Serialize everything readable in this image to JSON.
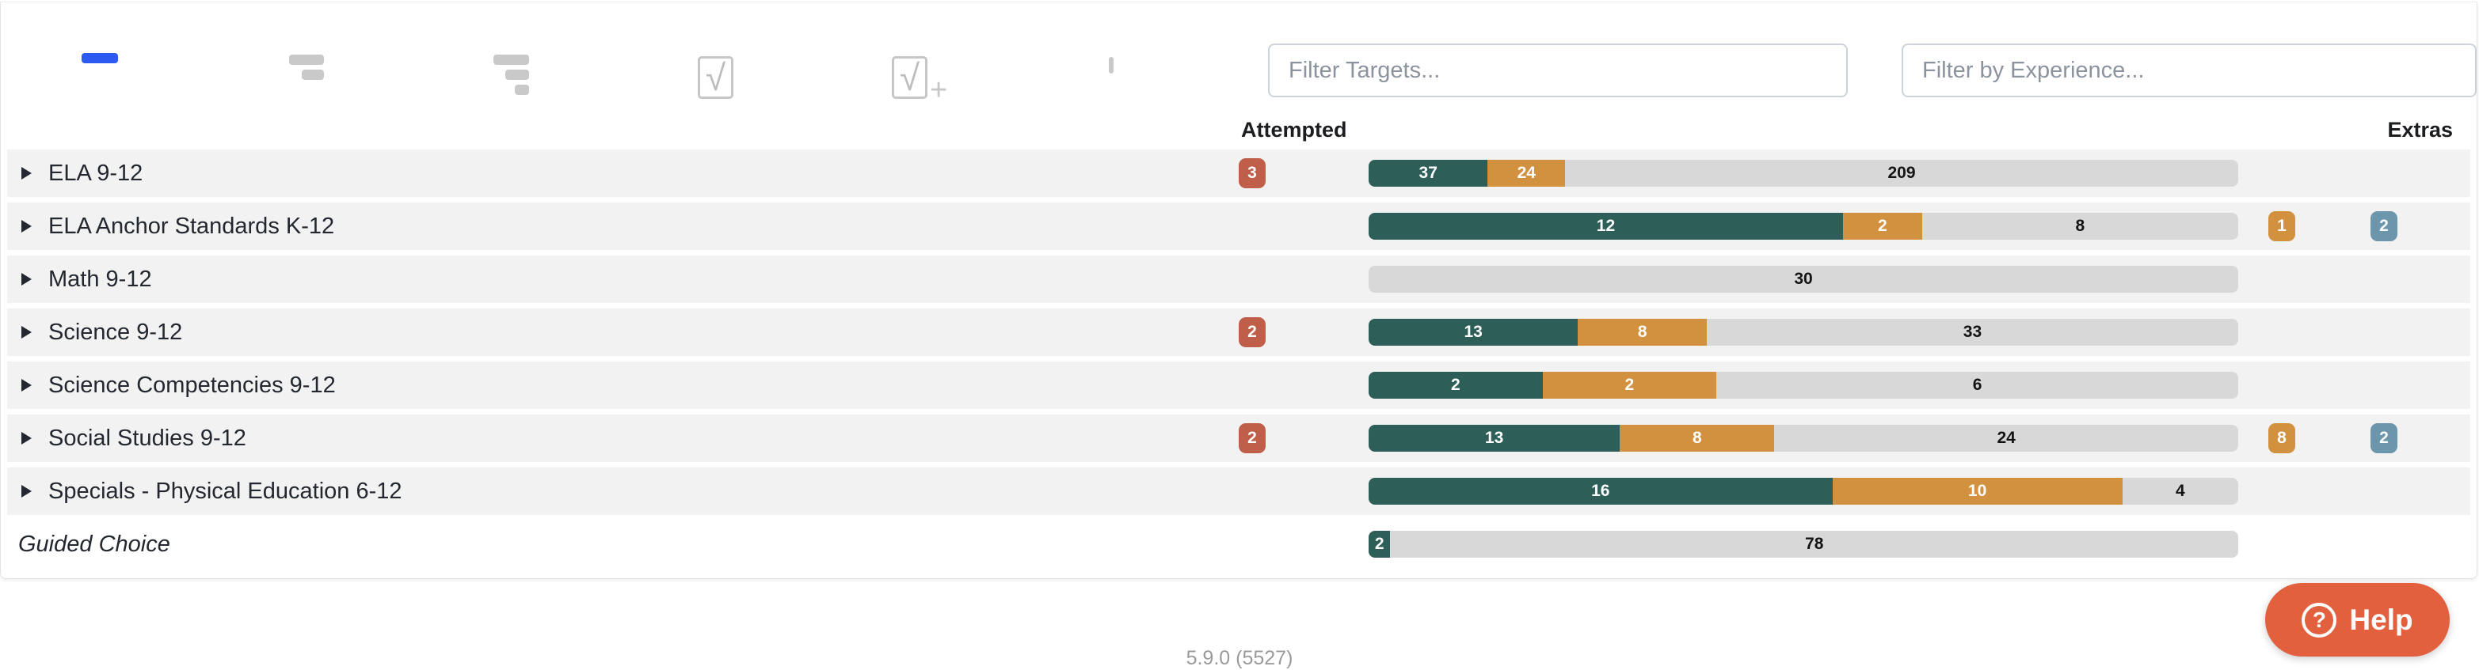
{
  "toolbar": {
    "view_buttons": [
      {
        "icon": "level-1-bar-icon",
        "active": true
      },
      {
        "icon": "level-2-bars-icon",
        "active": false
      },
      {
        "icon": "level-3-bars-icon",
        "active": false
      },
      {
        "icon": "scored-card-icon",
        "active": false
      },
      {
        "icon": "scored-card-plus-icon",
        "active": false
      },
      {
        "icon": "empty-card-icon",
        "active": false
      }
    ],
    "filter_targets_placeholder": "Filter Targets...",
    "filter_experience_placeholder": "Filter by Experience..."
  },
  "header": {
    "attempted_label": "Attempted",
    "extras_label": "Extras"
  },
  "rows": [
    {
      "label": "ELA 9-12",
      "expandable": true,
      "italic": false,
      "striped": true,
      "attempted": 3,
      "bar": {
        "completed": 37,
        "in_progress": 24,
        "remaining": 209
      },
      "extras": {
        "orange": null,
        "blue": null
      }
    },
    {
      "label": "ELA Anchor Standards K-12",
      "expandable": true,
      "italic": false,
      "striped": true,
      "attempted": null,
      "bar": {
        "completed": 12,
        "in_progress": 2,
        "remaining": 8
      },
      "extras": {
        "orange": 1,
        "blue": 2
      }
    },
    {
      "label": "Math 9-12",
      "expandable": true,
      "italic": false,
      "striped": true,
      "attempted": null,
      "bar": {
        "completed": 0,
        "in_progress": 0,
        "remaining": 30
      },
      "extras": {
        "orange": null,
        "blue": null
      }
    },
    {
      "label": "Science 9-12",
      "expandable": true,
      "italic": false,
      "striped": true,
      "attempted": 2,
      "bar": {
        "completed": 13,
        "in_progress": 8,
        "remaining": 33
      },
      "extras": {
        "orange": null,
        "blue": null
      }
    },
    {
      "label": "Science Competencies 9-12",
      "expandable": true,
      "italic": false,
      "striped": true,
      "attempted": null,
      "bar": {
        "completed": 2,
        "in_progress": 2,
        "remaining": 6
      },
      "extras": {
        "orange": null,
        "blue": null
      }
    },
    {
      "label": "Social Studies 9-12",
      "expandable": true,
      "italic": false,
      "striped": true,
      "attempted": 2,
      "bar": {
        "completed": 13,
        "in_progress": 8,
        "remaining": 24
      },
      "extras": {
        "orange": 8,
        "blue": 2
      }
    },
    {
      "label": "Specials - Physical Education 6-12",
      "expandable": true,
      "italic": false,
      "striped": true,
      "attempted": null,
      "bar": {
        "completed": 16,
        "in_progress": 10,
        "remaining": 4
      },
      "extras": {
        "orange": null,
        "blue": null
      }
    },
    {
      "label": "Guided Choice",
      "expandable": false,
      "italic": true,
      "striped": false,
      "attempted": null,
      "bar": {
        "completed": 2,
        "in_progress": 0,
        "remaining": 78
      },
      "extras": {
        "orange": null,
        "blue": null
      }
    }
  ],
  "help_button": {
    "label": "Help",
    "icon": "question-circle-icon"
  },
  "version": "5.9.0 (5527)",
  "colors": {
    "completed_green": "#2d5f58",
    "in_progress_orange": "#d2913e",
    "remaining_gray": "#d8d8d8",
    "attempted_badge_red": "#c05f49",
    "extra_badge_orange": "#d2913e",
    "extra_badge_blue": "#6b96ab",
    "active_view_blue": "#2d5bf1",
    "help_button_orange": "#e2603d",
    "row_stripe": "#f2f2f2"
  }
}
